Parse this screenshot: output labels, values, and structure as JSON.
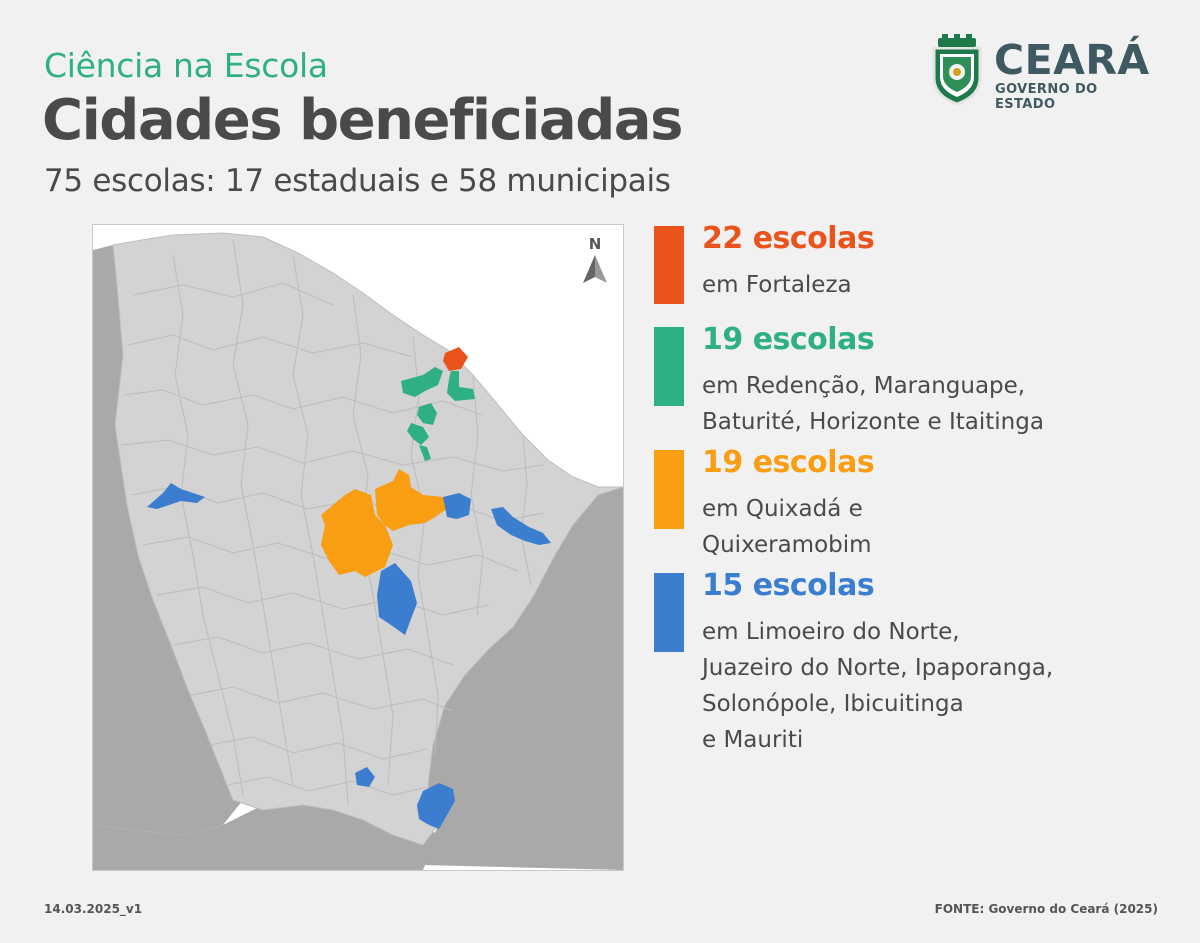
{
  "header": {
    "kicker": "Ciência na Escola",
    "title": "Cidades beneficiadas",
    "subtitle": "75 escolas: 17 estaduais e 58 municipais"
  },
  "logo": {
    "name": "CEARÁ",
    "subtitle": "GOVERNO DO ESTADO"
  },
  "map": {
    "north_label": "N",
    "background_color": "#ffffff",
    "state_fill": "#d3d3d3",
    "neighbor_fill": "#a9a9a9",
    "border_color": "#b9b9b9",
    "highlights": [
      {
        "group": "orange-red",
        "color": "#ea531c",
        "municipalities": [
          "Fortaleza"
        ]
      },
      {
        "group": "green",
        "color": "#2fb083",
        "municipalities": [
          "Redenção",
          "Maranguape",
          "Baturité",
          "Horizonte",
          "Itaitinga"
        ]
      },
      {
        "group": "orange",
        "color": "#f99d13",
        "municipalities": [
          "Quixadá",
          "Quixeramobim"
        ]
      },
      {
        "group": "blue",
        "color": "#3b7dce",
        "municipalities": [
          "Limoeiro do Norte",
          "Juazeiro do Norte",
          "Ipaporanga",
          "Solonópole",
          "Ibicuitinga",
          "Mauriti"
        ]
      }
    ]
  },
  "legend": [
    {
      "count": "22 escolas",
      "color": "#ea531c",
      "lines": [
        "em Fortaleza"
      ]
    },
    {
      "count": "19 escolas",
      "color": "#2fb083",
      "lines": [
        "em Redenção, Maranguape,",
        "Baturité, Horizonte e Itaitinga"
      ]
    },
    {
      "count": "19 escolas",
      "color": "#f99d13",
      "lines": [
        "em Quixadá e",
        "Quixeramobim"
      ]
    },
    {
      "count": "15 escolas",
      "color": "#3b7dce",
      "lines": [
        "em Limoeiro do Norte,",
        "Juazeiro do Norte, Ipaporanga,",
        "Solonópole, Ibicuitinga",
        "e Mauriti"
      ]
    }
  ],
  "footer": {
    "version": "14.03.2025_v1",
    "source": "FONTE: Governo do Ceará (2025)"
  }
}
